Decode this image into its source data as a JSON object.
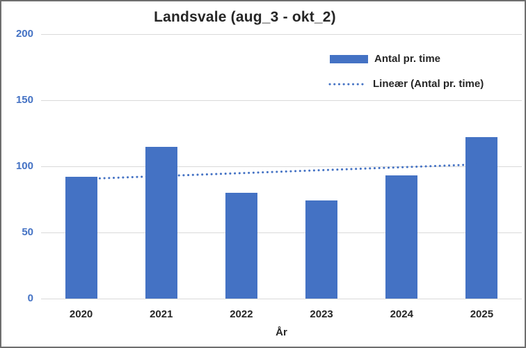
{
  "chart_data": {
    "type": "bar",
    "title": "Landsvale (aug_3 - okt_2)",
    "xlabel": "År",
    "ylabel": "",
    "categories": [
      "2020",
      "2021",
      "2022",
      "2023",
      "2024",
      "2025"
    ],
    "series": [
      {
        "name": "Antal pr. time",
        "values": [
          92,
          115,
          80,
          74,
          93,
          122
        ]
      }
    ],
    "trendline": {
      "label": "Lineær (Antal pr. time)",
      "type": "linear",
      "style": "dotted"
    },
    "ylim": [
      0,
      200
    ],
    "yticks": [
      0,
      50,
      100,
      150,
      200
    ],
    "grid": true,
    "legend_position": "top-right-inside",
    "colors": {
      "bar": "#4472C4",
      "trendline": "#4472C4",
      "axis_tick_labels": "#4472C4",
      "text": "#262626",
      "gridline": "#D9D9D9",
      "frame": "#6e6e6e",
      "background": "#FFFFFF"
    }
  }
}
